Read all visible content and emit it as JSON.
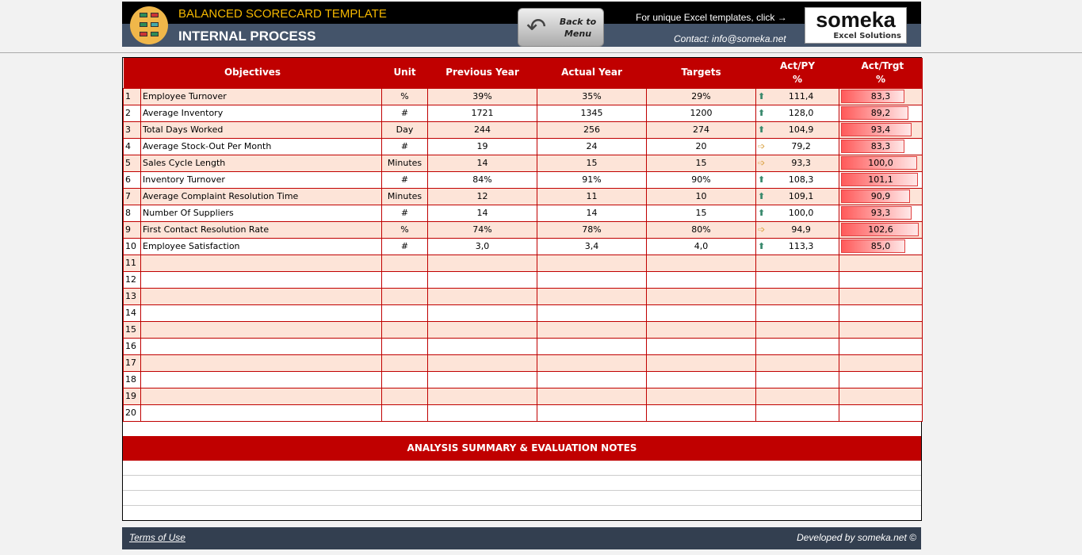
{
  "header": {
    "app_title": "BALANCED SCORECARD TEMPLATE",
    "page_title": "INTERNAL PROCESS",
    "back_button": "Back to Menu",
    "promo": "For unique Excel templates, click →",
    "contact": "Contact: info@someka.net",
    "brand": "someka",
    "brand_sub": "Excel Solutions"
  },
  "table": {
    "headers": [
      "Objectives",
      "Unit",
      "Previous Year",
      "Actual Year",
      "Targets",
      "Act/PY %",
      "Act/Trgt %"
    ],
    "rows": [
      {
        "n": "1",
        "objective": "Employee Turnover",
        "unit": "%",
        "py": "39%",
        "ay": "35%",
        "target": "29%",
        "act_py": "111,4",
        "trend": "up",
        "act_trgt": "83,3"
      },
      {
        "n": "2",
        "objective": "Average Inventory",
        "unit": "#",
        "py": "1721",
        "ay": "1345",
        "target": "1200",
        "act_py": "128,0",
        "trend": "up",
        "act_trgt": "89,2"
      },
      {
        "n": "3",
        "objective": "Total Days Worked",
        "unit": "Day",
        "py": "244",
        "ay": "256",
        "target": "274",
        "act_py": "104,9",
        "trend": "up",
        "act_trgt": "93,4"
      },
      {
        "n": "4",
        "objective": "Average Stock-Out Per Month",
        "unit": "#",
        "py": "19",
        "ay": "24",
        "target": "20",
        "act_py": "79,2",
        "trend": "side",
        "act_trgt": "83,3"
      },
      {
        "n": "5",
        "objective": "Sales Cycle Length",
        "unit": "Minutes",
        "py": "14",
        "ay": "15",
        "target": "15",
        "act_py": "93,3",
        "trend": "side",
        "act_trgt": "100,0"
      },
      {
        "n": "6",
        "objective": "Inventory Turnover",
        "unit": "#",
        "py": "84%",
        "ay": "91%",
        "target": "90%",
        "act_py": "108,3",
        "trend": "up",
        "act_trgt": "101,1"
      },
      {
        "n": "7",
        "objective": "Average Complaint Resolution Time",
        "unit": "Minutes",
        "py": "12",
        "ay": "11",
        "target": "10",
        "act_py": "109,1",
        "trend": "up",
        "act_trgt": "90,9"
      },
      {
        "n": "8",
        "objective": "Number Of Suppliers",
        "unit": "#",
        "py": "14",
        "ay": "14",
        "target": "15",
        "act_py": "100,0",
        "trend": "up",
        "act_trgt": "93,3"
      },
      {
        "n": "9",
        "objective": "First Contact Resolution Rate",
        "unit": "%",
        "py": "74%",
        "ay": "78%",
        "target": "80%",
        "act_py": "94,9",
        "trend": "side",
        "act_trgt": "102,6"
      },
      {
        "n": "10",
        "objective": "Employee Satisfaction",
        "unit": "#",
        "py": "3,0",
        "ay": "3,4",
        "target": "4,0",
        "act_py": "113,3",
        "trend": "up",
        "act_trgt": "85,0"
      },
      {
        "n": "11"
      },
      {
        "n": "12"
      },
      {
        "n": "13"
      },
      {
        "n": "14"
      },
      {
        "n": "15"
      },
      {
        "n": "16"
      },
      {
        "n": "17"
      },
      {
        "n": "18"
      },
      {
        "n": "19"
      },
      {
        "n": "20"
      }
    ]
  },
  "colors": {
    "accent": "#c00000",
    "row_alt": "#fde4d8",
    "header_bg": "#44546a",
    "trend_up": "#3b8a6e",
    "trend_side": "#d9a040"
  },
  "summary_title": "ANALYSIS SUMMARY & EVALUATION NOTES",
  "footer": {
    "terms": "Terms of Use",
    "developed": "Developed by someka.net ©"
  }
}
